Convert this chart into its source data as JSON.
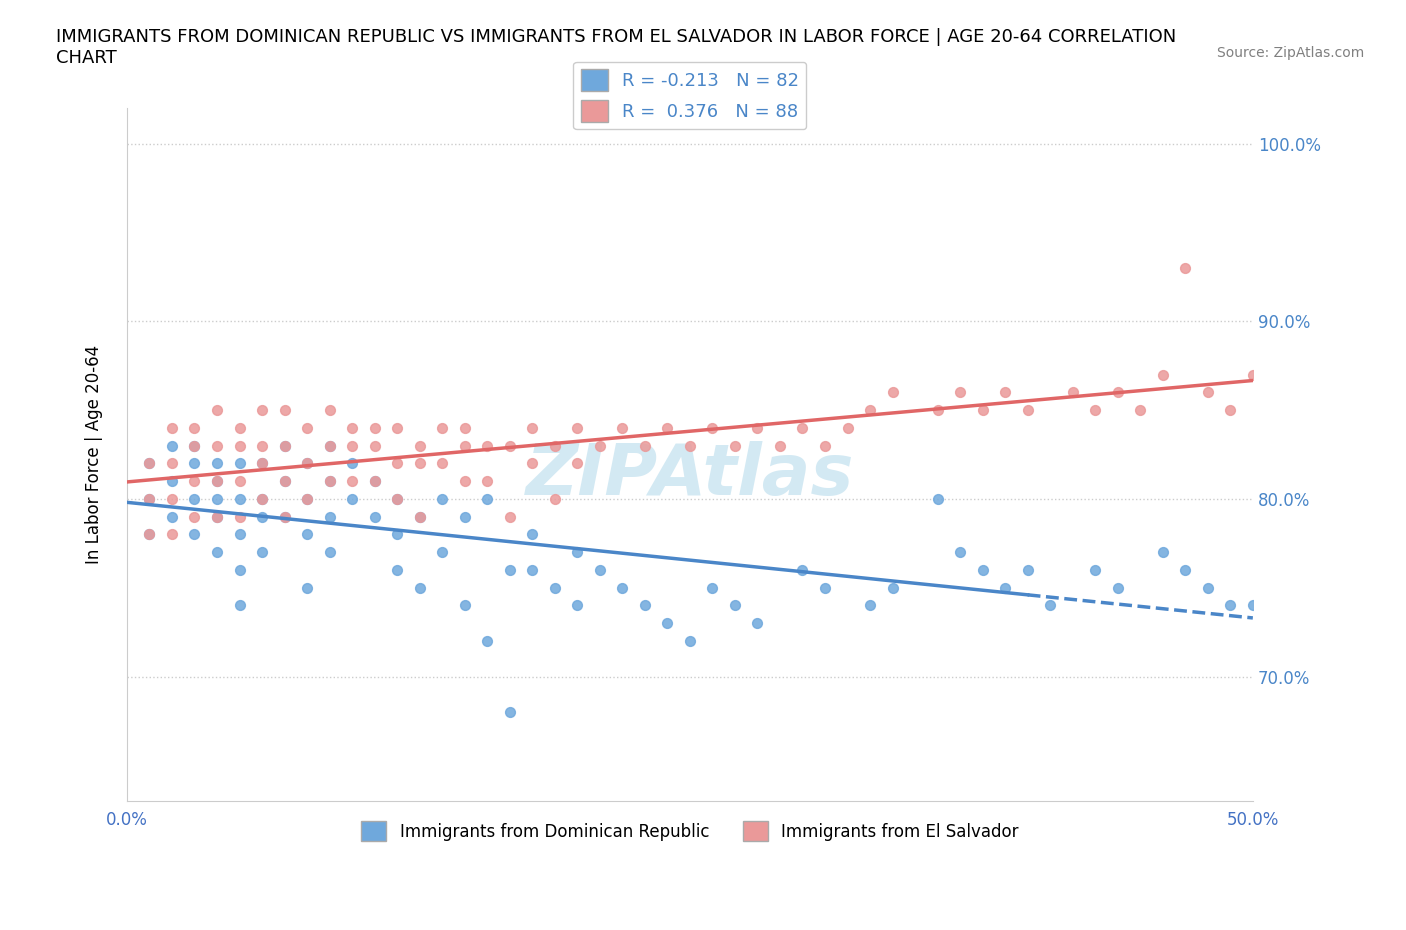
{
  "title": "IMMIGRANTS FROM DOMINICAN REPUBLIC VS IMMIGRANTS FROM EL SALVADOR IN LABOR FORCE | AGE 20-64 CORRELATION\nCHART",
  "source_text": "Source: ZipAtlas.com",
  "xlabel": "",
  "ylabel": "In Labor Force | Age 20-64",
  "xlim": [
    0.0,
    0.5
  ],
  "ylim": [
    0.63,
    1.02
  ],
  "yticks": [
    0.7,
    0.8,
    0.9,
    1.0
  ],
  "ytick_labels": [
    "70.0%",
    "80.0%",
    "90.0%",
    "100.0%"
  ],
  "xticks": [
    0.0,
    0.05,
    0.1,
    0.15,
    0.2,
    0.25,
    0.3,
    0.35,
    0.4,
    0.45,
    0.5
  ],
  "xtick_labels": [
    "0.0%",
    "",
    "",
    "",
    "",
    "",
    "",
    "",
    "",
    "",
    "50.0%"
  ],
  "blue_color": "#6fa8dc",
  "pink_color": "#ea9999",
  "blue_line_color": "#4a86c8",
  "pink_line_color": "#e06666",
  "legend_R_blue": "-0.213",
  "legend_N_blue": "82",
  "legend_R_pink": "0.376",
  "legend_N_pink": "88",
  "label_blue": "Immigrants from Dominican Republic",
  "label_pink": "Immigrants from El Salvador",
  "watermark": "ZIPAtlas",
  "watermark_color": "#a8d4e8",
  "blue_scatter_x": [
    0.02,
    0.01,
    0.01,
    0.01,
    0.02,
    0.02,
    0.03,
    0.03,
    0.03,
    0.03,
    0.04,
    0.04,
    0.04,
    0.04,
    0.04,
    0.05,
    0.05,
    0.05,
    0.05,
    0.05,
    0.06,
    0.06,
    0.06,
    0.06,
    0.07,
    0.07,
    0.07,
    0.08,
    0.08,
    0.08,
    0.08,
    0.09,
    0.09,
    0.09,
    0.09,
    0.1,
    0.1,
    0.11,
    0.11,
    0.12,
    0.12,
    0.12,
    0.13,
    0.13,
    0.14,
    0.14,
    0.15,
    0.15,
    0.16,
    0.16,
    0.17,
    0.17,
    0.18,
    0.18,
    0.19,
    0.2,
    0.2,
    0.21,
    0.22,
    0.23,
    0.24,
    0.25,
    0.26,
    0.27,
    0.28,
    0.3,
    0.31,
    0.33,
    0.34,
    0.36,
    0.37,
    0.38,
    0.39,
    0.4,
    0.41,
    0.43,
    0.44,
    0.46,
    0.47,
    0.48,
    0.49,
    0.5
  ],
  "blue_scatter_y": [
    0.83,
    0.8,
    0.78,
    0.82,
    0.81,
    0.79,
    0.82,
    0.8,
    0.78,
    0.83,
    0.81,
    0.8,
    0.79,
    0.77,
    0.82,
    0.82,
    0.8,
    0.78,
    0.76,
    0.74,
    0.82,
    0.8,
    0.79,
    0.77,
    0.83,
    0.81,
    0.79,
    0.82,
    0.8,
    0.78,
    0.75,
    0.83,
    0.81,
    0.79,
    0.77,
    0.82,
    0.8,
    0.81,
    0.79,
    0.8,
    0.78,
    0.76,
    0.79,
    0.75,
    0.8,
    0.77,
    0.79,
    0.74,
    0.8,
    0.72,
    0.76,
    0.68,
    0.78,
    0.76,
    0.75,
    0.77,
    0.74,
    0.76,
    0.75,
    0.74,
    0.73,
    0.72,
    0.75,
    0.74,
    0.73,
    0.76,
    0.75,
    0.74,
    0.75,
    0.8,
    0.77,
    0.76,
    0.75,
    0.76,
    0.74,
    0.76,
    0.75,
    0.77,
    0.76,
    0.75,
    0.74,
    0.74
  ],
  "pink_scatter_x": [
    0.01,
    0.01,
    0.01,
    0.02,
    0.02,
    0.02,
    0.02,
    0.03,
    0.03,
    0.03,
    0.03,
    0.04,
    0.04,
    0.04,
    0.04,
    0.05,
    0.05,
    0.05,
    0.05,
    0.06,
    0.06,
    0.06,
    0.06,
    0.07,
    0.07,
    0.07,
    0.07,
    0.08,
    0.08,
    0.08,
    0.09,
    0.09,
    0.09,
    0.1,
    0.1,
    0.1,
    0.11,
    0.11,
    0.11,
    0.12,
    0.12,
    0.12,
    0.13,
    0.13,
    0.13,
    0.14,
    0.14,
    0.15,
    0.15,
    0.15,
    0.16,
    0.16,
    0.17,
    0.17,
    0.18,
    0.18,
    0.19,
    0.19,
    0.2,
    0.2,
    0.21,
    0.22,
    0.23,
    0.24,
    0.25,
    0.26,
    0.27,
    0.28,
    0.29,
    0.3,
    0.31,
    0.32,
    0.33,
    0.34,
    0.36,
    0.37,
    0.38,
    0.39,
    0.4,
    0.42,
    0.43,
    0.44,
    0.45,
    0.46,
    0.47,
    0.48,
    0.49,
    0.5
  ],
  "pink_scatter_y": [
    0.82,
    0.8,
    0.78,
    0.84,
    0.82,
    0.8,
    0.78,
    0.84,
    0.83,
    0.81,
    0.79,
    0.85,
    0.83,
    0.81,
    0.79,
    0.84,
    0.83,
    0.81,
    0.79,
    0.85,
    0.83,
    0.82,
    0.8,
    0.85,
    0.83,
    0.81,
    0.79,
    0.84,
    0.82,
    0.8,
    0.85,
    0.83,
    0.81,
    0.84,
    0.83,
    0.81,
    0.84,
    0.83,
    0.81,
    0.84,
    0.82,
    0.8,
    0.83,
    0.82,
    0.79,
    0.84,
    0.82,
    0.84,
    0.83,
    0.81,
    0.83,
    0.81,
    0.83,
    0.79,
    0.84,
    0.82,
    0.83,
    0.8,
    0.84,
    0.82,
    0.83,
    0.84,
    0.83,
    0.84,
    0.83,
    0.84,
    0.83,
    0.84,
    0.83,
    0.84,
    0.83,
    0.84,
    0.85,
    0.86,
    0.85,
    0.86,
    0.85,
    0.86,
    0.85,
    0.86,
    0.85,
    0.86,
    0.85,
    0.87,
    0.93,
    0.86,
    0.85,
    0.87
  ]
}
